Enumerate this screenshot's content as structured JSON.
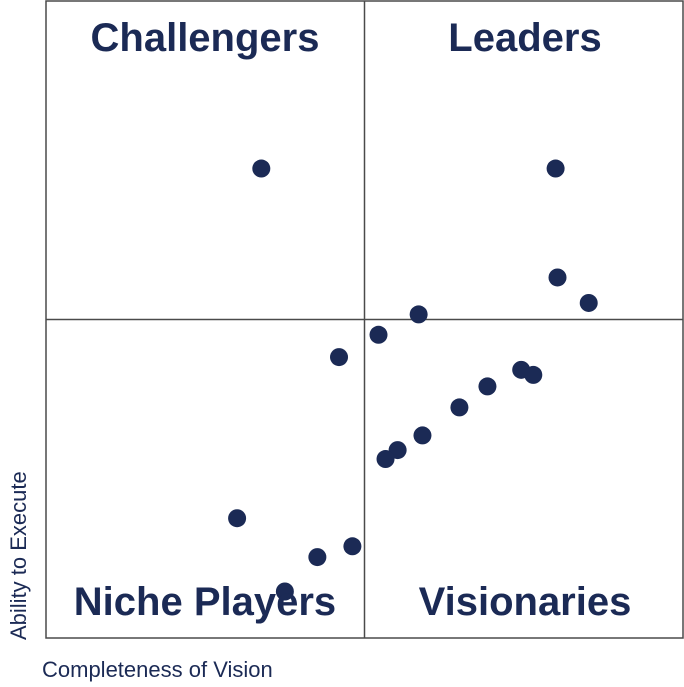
{
  "chart_data": {
    "type": "scatter",
    "title": "",
    "xlabel": "Completeness of Vision",
    "ylabel": "Ability to Execute",
    "xlim": [
      0,
      100
    ],
    "ylim": [
      0,
      100
    ],
    "quadrants": {
      "top_left": "Challengers",
      "top_right": "Leaders",
      "bottom_left": "Niche Players",
      "bottom_right": "Visionaries"
    },
    "grid": false,
    "legend": "none",
    "points": [
      {
        "x": 33.8,
        "y": 73.7
      },
      {
        "x": 80.0,
        "y": 73.7
      },
      {
        "x": 80.3,
        "y": 56.6
      },
      {
        "x": 85.2,
        "y": 52.6
      },
      {
        "x": 58.5,
        "y": 50.8
      },
      {
        "x": 52.2,
        "y": 47.6
      },
      {
        "x": 46.0,
        "y": 44.1
      },
      {
        "x": 74.6,
        "y": 42.1
      },
      {
        "x": 76.5,
        "y": 41.3
      },
      {
        "x": 69.3,
        "y": 39.5
      },
      {
        "x": 64.9,
        "y": 36.2
      },
      {
        "x": 59.1,
        "y": 31.8
      },
      {
        "x": 55.2,
        "y": 29.5
      },
      {
        "x": 53.3,
        "y": 28.1
      },
      {
        "x": 30.0,
        "y": 18.8
      },
      {
        "x": 48.1,
        "y": 14.4
      },
      {
        "x": 42.6,
        "y": 12.7
      },
      {
        "x": 37.5,
        "y": 7.3
      }
    ],
    "colors": {
      "points": "#1b2a55",
      "text": "#1b2a55",
      "grid": "#4a4a4a"
    }
  }
}
